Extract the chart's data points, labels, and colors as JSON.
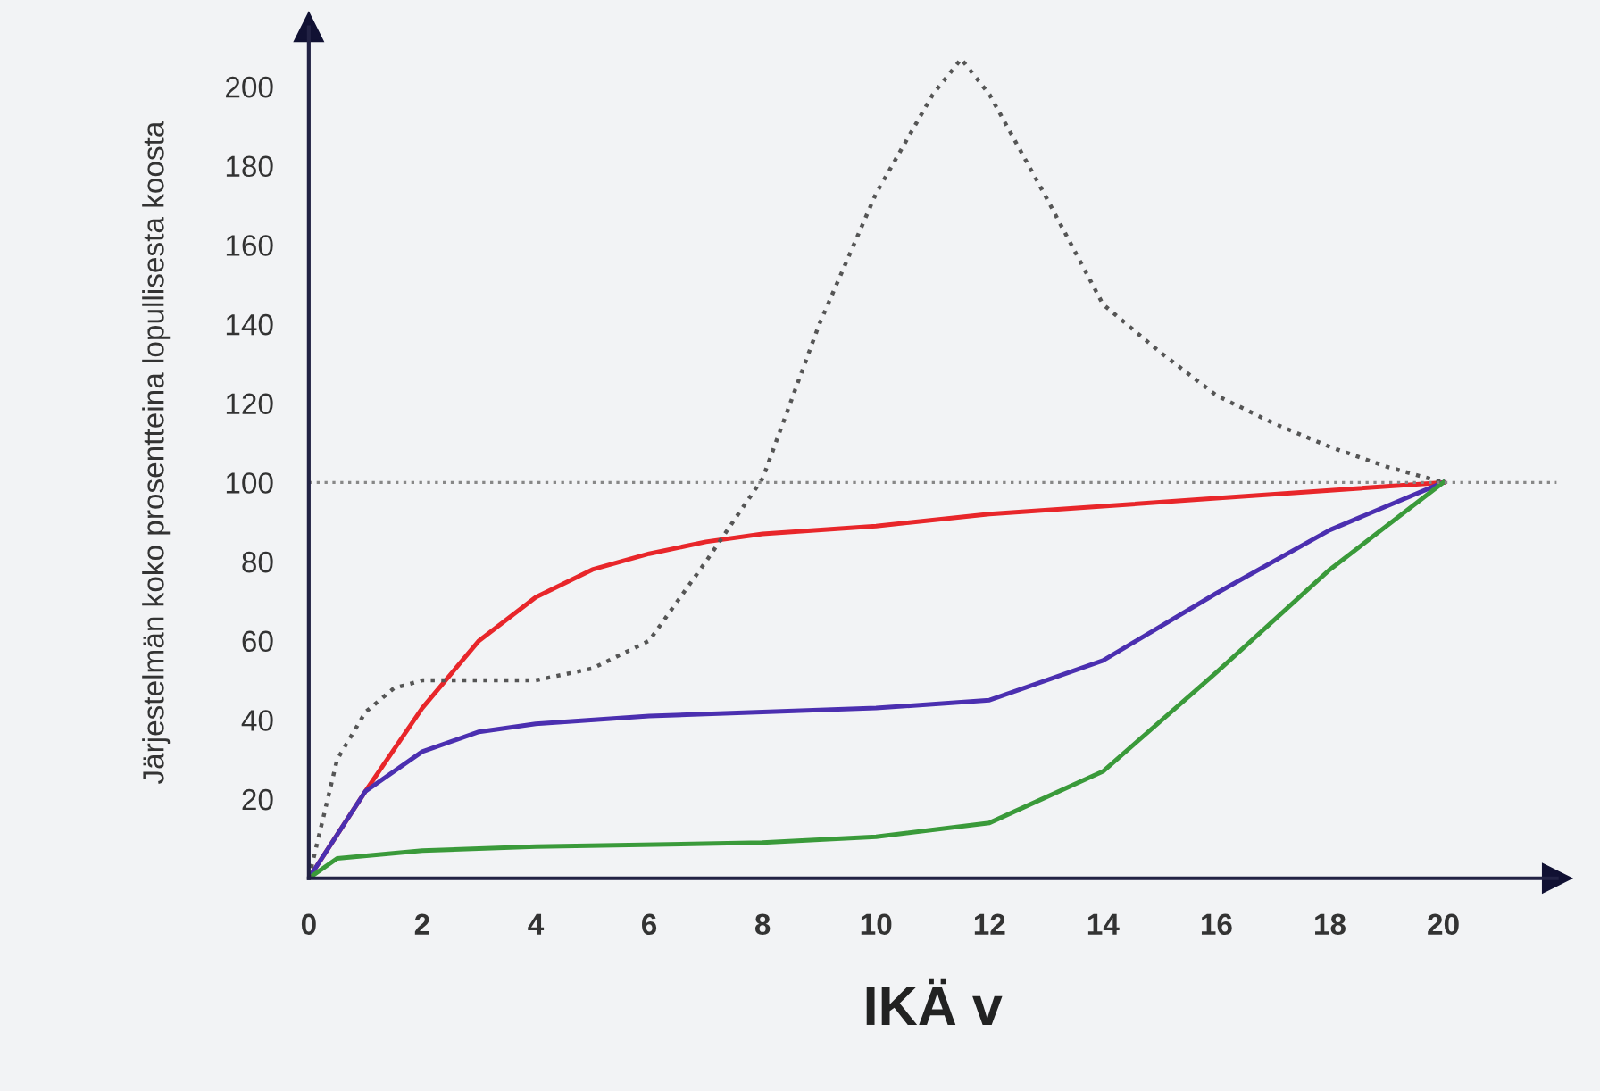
{
  "chart_data": {
    "type": "line",
    "xlabel": "IKÄ v",
    "ylabel": "Järjestelmän koko prosentteina lopullisesta koosta",
    "xlim": [
      0,
      22
    ],
    "ylim": [
      0,
      215
    ],
    "xticks": [
      0,
      2,
      4,
      6,
      8,
      10,
      12,
      14,
      16,
      18,
      20
    ],
    "yticks": [
      20,
      40,
      60,
      80,
      100,
      120,
      140,
      160,
      180,
      200
    ],
    "grid": false,
    "legend": false,
    "marker": "none",
    "ref_lines": [
      {
        "axis": "y",
        "value": 100,
        "color": "#888888",
        "line_style": "dotted"
      }
    ],
    "series": [
      {
        "color": "#e8262a",
        "line_style": "solid",
        "x": [
          0,
          1,
          2,
          3,
          4,
          5,
          6,
          7,
          8,
          10,
          12,
          14,
          16,
          18,
          20
        ],
        "values": [
          0,
          22,
          43,
          60,
          71,
          78,
          82,
          85,
          87,
          89,
          92,
          94,
          96,
          98,
          100
        ]
      },
      {
        "color": "#4b2fb0",
        "line_style": "solid",
        "x": [
          0,
          1,
          2,
          3,
          4,
          6,
          8,
          10,
          12,
          14,
          16,
          18,
          20
        ],
        "values": [
          0,
          22,
          32,
          37,
          39,
          41,
          42,
          43,
          45,
          55,
          72,
          88,
          100
        ]
      },
      {
        "color": "#3a9a3a",
        "line_style": "solid",
        "x": [
          0,
          0.5,
          2,
          4,
          8,
          10,
          12,
          14,
          16,
          18,
          20
        ],
        "values": [
          0,
          5,
          7,
          8,
          9,
          10.5,
          14,
          27,
          52,
          78,
          100
        ]
      },
      {
        "color": "#555555",
        "line_style": "dotted",
        "x": [
          0,
          0.5,
          1,
          1.5,
          2,
          3,
          4,
          5,
          6,
          7,
          8,
          9,
          10,
          11,
          11.5,
          12,
          13,
          14,
          15,
          16,
          17,
          18,
          19,
          20
        ],
        "values": [
          0,
          30,
          42,
          48,
          50,
          50,
          50,
          53,
          60,
          80,
          101,
          140,
          173,
          198,
          207,
          198,
          172,
          145,
          133,
          122,
          115,
          109,
          104,
          100
        ]
      }
    ]
  }
}
